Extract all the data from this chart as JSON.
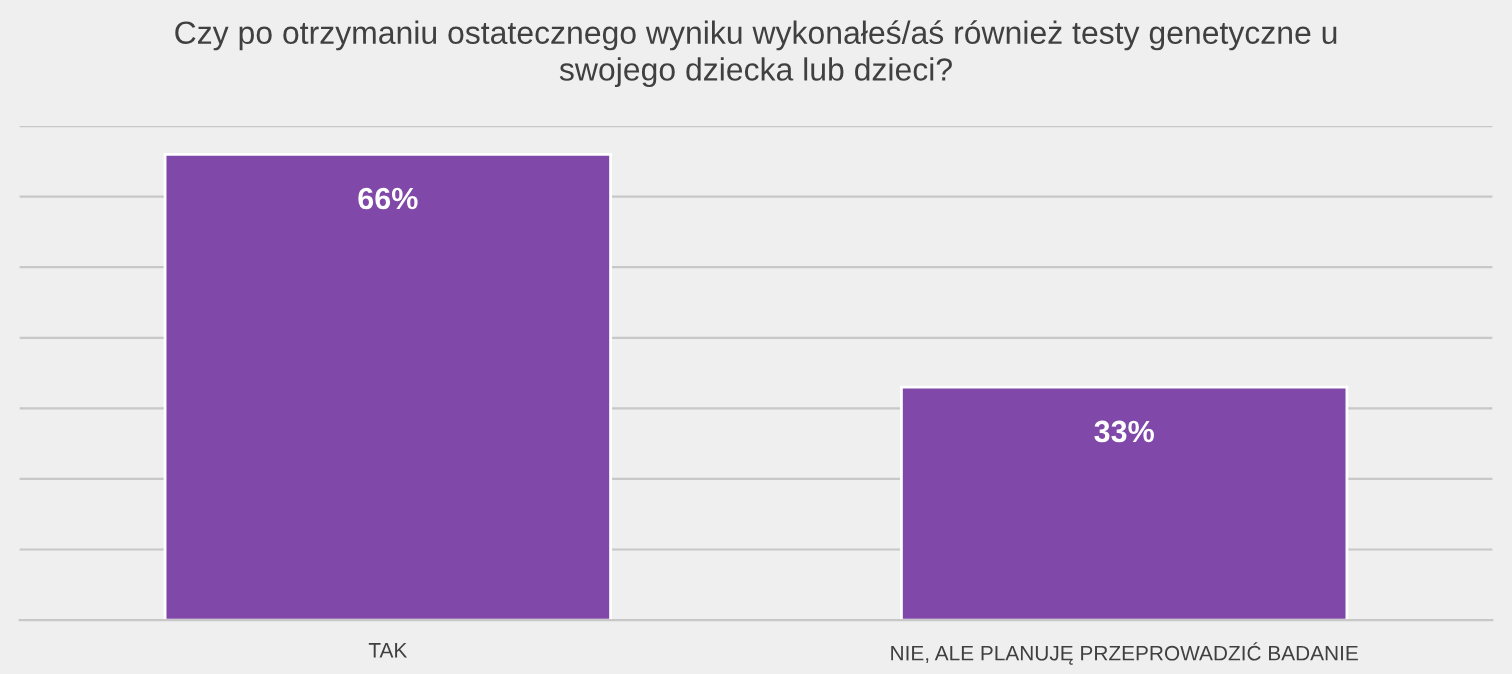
{
  "chart_data": {
    "type": "bar",
    "title": "Czy po otrzymaniu ostatecznego wyniku wykonałeś/aś również testy genetyczne u\nswojego dziecka lub dzieci?",
    "categories": [
      "TAK",
      "NIE, ALE PLANUJĘ PRZEPROWADZIĆ BADANIE"
    ],
    "values": [
      66,
      33
    ],
    "color": "#8048a8",
    "value_labels": [
      "66%",
      "33%"
    ],
    "ylim": [
      0,
      70
    ],
    "yticks": [
      {
        "value": 10,
        "label": null
      },
      {
        "value": 20,
        "label": null
      },
      {
        "value": 30,
        "label": null
      },
      {
        "value": 40,
        "label": null
      },
      {
        "value": 50,
        "label": null
      },
      {
        "value": 60,
        "label": null
      },
      {
        "value": 70,
        "label": null
      }
    ],
    "grid": "y",
    "tick_labels": "x"
  }
}
